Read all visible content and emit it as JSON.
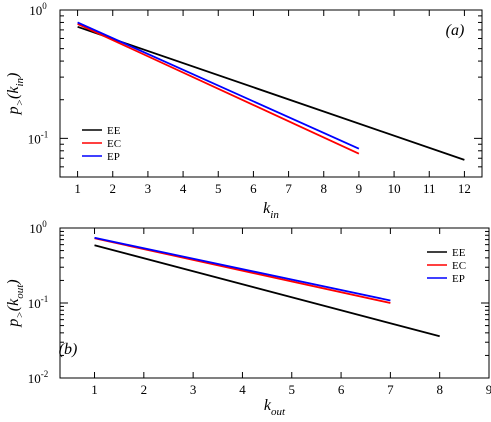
{
  "chart_data": [
    {
      "type": "line",
      "panel_label": "(a)",
      "x_scale": "linear",
      "y_scale": "log",
      "xlim": [
        0.5,
        12.5
      ],
      "ylim": [
        0.05,
        1
      ],
      "x_ticks": [
        1,
        2,
        3,
        4,
        5,
        6,
        7,
        8,
        9,
        10,
        11,
        12
      ],
      "x_tick_labels": [
        "1",
        "2",
        "3",
        "4",
        "5",
        "6",
        "7",
        "8",
        "9",
        "10",
        "11",
        "12"
      ],
      "y_ticks": [
        1,
        0.1
      ],
      "y_tick_labels": {
        "base": "10",
        "exps": [
          "0",
          "-1"
        ]
      },
      "xlabel": {
        "main": "k",
        "sub": "in"
      },
      "ylabel": {
        "p": "p",
        "gt": ">",
        "k": "k",
        "sub": "in"
      },
      "legend": {
        "position": "lower-left",
        "entries": [
          "EE",
          "EC",
          "EP"
        ]
      },
      "series": [
        {
          "name": "EE",
          "color": "#000000",
          "points": [
            [
              1,
              0.74
            ],
            [
              12,
              0.068
            ]
          ]
        },
        {
          "name": "EC",
          "color": "#ff0000",
          "points": [
            [
              1,
              0.78
            ],
            [
              9,
              0.076
            ]
          ]
        },
        {
          "name": "EP",
          "color": "#0000ff",
          "points": [
            [
              1,
              0.8
            ],
            [
              9,
              0.083
            ]
          ]
        }
      ]
    },
    {
      "type": "line",
      "panel_label": "(b)",
      "x_scale": "linear",
      "y_scale": "log",
      "xlim": [
        0.3,
        9.0
      ],
      "ylim": [
        0.01,
        1
      ],
      "x_ticks": [
        1,
        2,
        3,
        4,
        5,
        6,
        7,
        8,
        9
      ],
      "x_tick_labels": [
        "1",
        "2",
        "3",
        "4",
        "5",
        "6",
        "7",
        "8",
        "9"
      ],
      "y_ticks": [
        1,
        0.1,
        0.01
      ],
      "y_tick_labels": {
        "base": "10",
        "exps": [
          "0",
          "-1",
          "-2"
        ]
      },
      "xlabel": {
        "main": "k",
        "sub": "out"
      },
      "ylabel": {
        "p": "p",
        "gt": ">",
        "k": "k",
        "sub": "out"
      },
      "legend": {
        "position": "top-right",
        "entries": [
          "EE",
          "EC",
          "EP"
        ]
      },
      "series": [
        {
          "name": "EE",
          "color": "#000000",
          "points": [
            [
              1,
              0.59
            ],
            [
              8,
              0.036
            ]
          ]
        },
        {
          "name": "EC",
          "color": "#ff0000",
          "points": [
            [
              1,
              0.73
            ],
            [
              7,
              0.1
            ]
          ]
        },
        {
          "name": "EP",
          "color": "#0000ff",
          "points": [
            [
              1,
              0.74
            ],
            [
              7,
              0.108
            ]
          ]
        }
      ]
    }
  ]
}
